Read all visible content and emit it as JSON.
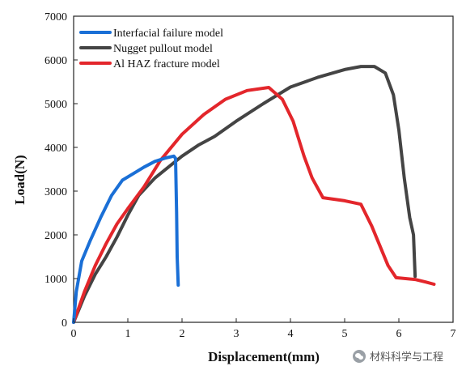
{
  "chart_data": {
    "type": "line",
    "title": "",
    "xlabel": "Displacement(mm)",
    "ylabel": "Load(N)",
    "xlim": [
      0,
      7
    ],
    "ylim": [
      0,
      7000
    ],
    "xticks": [
      0,
      1,
      2,
      3,
      4,
      5,
      6,
      7
    ],
    "yticks": [
      0,
      1000,
      2000,
      3000,
      4000,
      5000,
      6000,
      7000
    ],
    "grid": false,
    "legend_position": "top-left",
    "series": [
      {
        "name": "Interfacial failure model",
        "color": "#1a6fd6",
        "points": [
          [
            0,
            0
          ],
          [
            0.05,
            700
          ],
          [
            0.15,
            1400
          ],
          [
            0.3,
            1850
          ],
          [
            0.5,
            2400
          ],
          [
            0.7,
            2900
          ],
          [
            0.9,
            3250
          ],
          [
            1.1,
            3400
          ],
          [
            1.3,
            3550
          ],
          [
            1.5,
            3680
          ],
          [
            1.7,
            3760
          ],
          [
            1.85,
            3800
          ],
          [
            1.88,
            3750
          ],
          [
            1.9,
            2500
          ],
          [
            1.91,
            1500
          ],
          [
            1.93,
            850
          ]
        ]
      },
      {
        "name": "Nugget pullout model",
        "color": "#444444",
        "points": [
          [
            0,
            0
          ],
          [
            0.2,
            600
          ],
          [
            0.4,
            1100
          ],
          [
            0.6,
            1500
          ],
          [
            0.8,
            1950
          ],
          [
            1.0,
            2450
          ],
          [
            1.2,
            2900
          ],
          [
            1.5,
            3300
          ],
          [
            1.8,
            3600
          ],
          [
            2.0,
            3800
          ],
          [
            2.3,
            4050
          ],
          [
            2.6,
            4250
          ],
          [
            3.0,
            4600
          ],
          [
            3.5,
            5000
          ],
          [
            4.0,
            5380
          ],
          [
            4.5,
            5600
          ],
          [
            5.0,
            5780
          ],
          [
            5.3,
            5850
          ],
          [
            5.55,
            5850
          ],
          [
            5.75,
            5700
          ],
          [
            5.9,
            5200
          ],
          [
            6.0,
            4400
          ],
          [
            6.1,
            3300
          ],
          [
            6.2,
            2400
          ],
          [
            6.27,
            2000
          ],
          [
            6.3,
            1050
          ]
        ]
      },
      {
        "name": "Al HAZ fracture model",
        "color": "#e3262b",
        "points": [
          [
            0,
            0
          ],
          [
            0.2,
            700
          ],
          [
            0.4,
            1300
          ],
          [
            0.6,
            1800
          ],
          [
            0.8,
            2250
          ],
          [
            1.0,
            2600
          ],
          [
            1.3,
            3100
          ],
          [
            1.6,
            3700
          ],
          [
            2.0,
            4300
          ],
          [
            2.4,
            4750
          ],
          [
            2.8,
            5100
          ],
          [
            3.2,
            5300
          ],
          [
            3.6,
            5370
          ],
          [
            3.85,
            5100
          ],
          [
            4.05,
            4600
          ],
          [
            4.25,
            3800
          ],
          [
            4.4,
            3300
          ],
          [
            4.6,
            2850
          ],
          [
            5.0,
            2780
          ],
          [
            5.3,
            2700
          ],
          [
            5.5,
            2200
          ],
          [
            5.8,
            1300
          ],
          [
            5.95,
            1020
          ],
          [
            6.3,
            980
          ],
          [
            6.5,
            920
          ],
          [
            6.65,
            870
          ]
        ]
      }
    ]
  },
  "watermark": {
    "text": "材料科学与工程",
    "icon": "wechat-icon"
  }
}
